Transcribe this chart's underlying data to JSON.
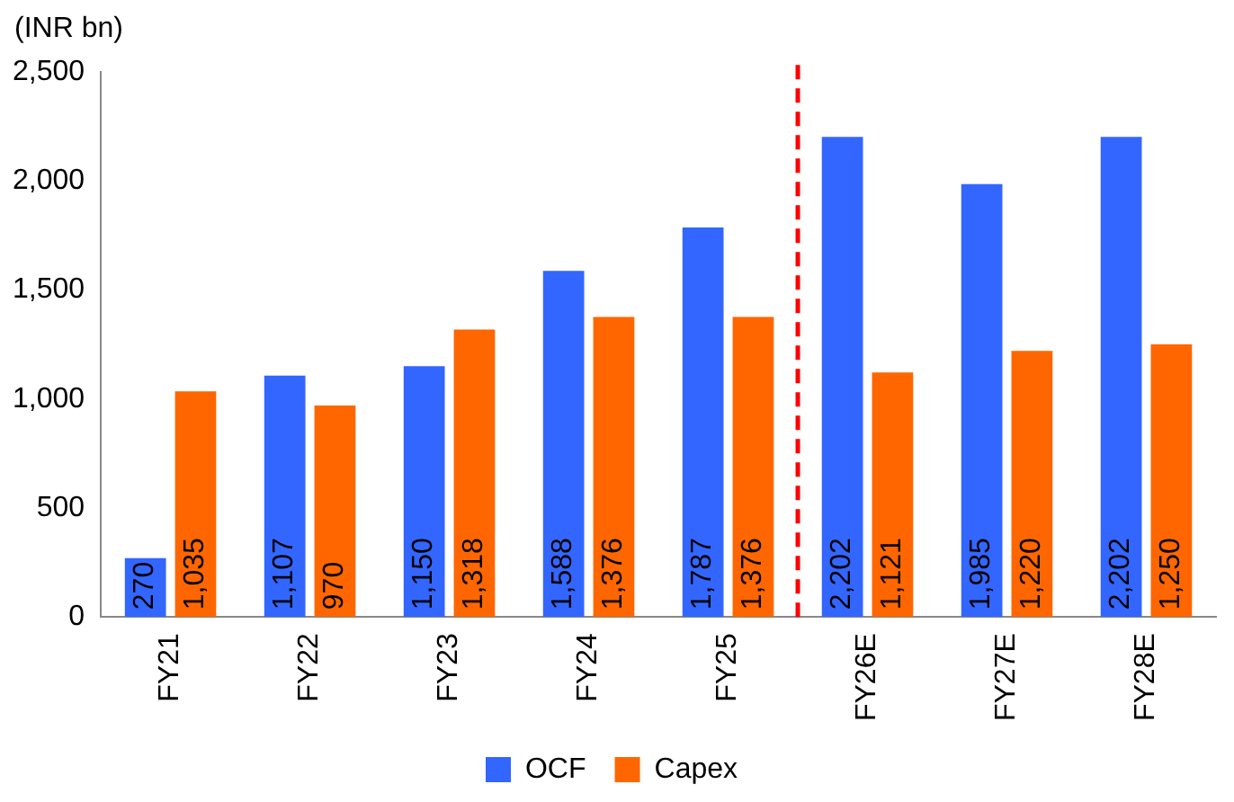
{
  "chart_data": {
    "type": "bar",
    "ylabel": "(INR bn)",
    "categories": [
      "FY21",
      "FY22",
      "FY23",
      "FY24",
      "FY25",
      "FY26E",
      "FY27E",
      "FY28E"
    ],
    "series": [
      {
        "name": "OCF",
        "color": "#3366ff",
        "values": [
          270,
          1107,
          1150,
          1588,
          1787,
          2202,
          1985,
          2202
        ],
        "value_labels": [
          "270",
          "1,107",
          "1,150",
          "1,588",
          "1,787",
          "2,202",
          "1,985",
          "2,202"
        ]
      },
      {
        "name": "Capex",
        "color": "#ff6600",
        "values": [
          1035,
          970,
          1318,
          1376,
          1376,
          1121,
          1220,
          1250
        ],
        "value_labels": [
          "1,035",
          "970",
          "1,318",
          "1,376",
          "1,376",
          "1,121",
          "1,220",
          "1,250"
        ]
      }
    ],
    "ylim": [
      0,
      2500
    ],
    "yticks": [
      0,
      {
        "value": 500,
        "label": "500"
      },
      {
        "value": 1000,
        "label": "1,000"
      },
      {
        "value": 1500,
        "label": "1,500"
      },
      {
        "value": 2000,
        "label": "2,000"
      },
      {
        "value": 2500,
        "label": "2,500"
      }
    ],
    "ref_lines": [
      {
        "axis": "x",
        "value": "FY26E",
        "color": "#ff0000",
        "line_style": "dashed"
      }
    ],
    "grid": false,
    "legend": "bottom"
  }
}
